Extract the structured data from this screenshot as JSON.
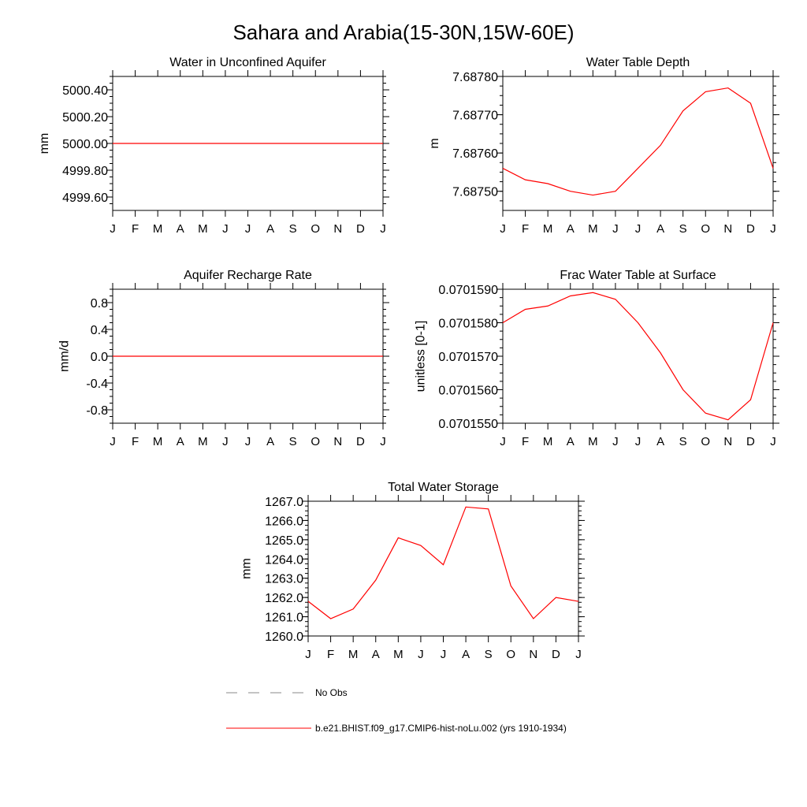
{
  "figure": {
    "title": "Sahara and Arabia(15-30N,15W-60E)"
  },
  "colors": {
    "series": "#ff0000",
    "obs": "#888888",
    "axis": "#000000"
  },
  "legend": {
    "items": [
      {
        "label": "No Obs",
        "style": "dashed",
        "color": "#888888"
      },
      {
        "label": "b.e21.BHIST.f09_g17.CMIP6-hist-noLu.002 (yrs 1910-1934)",
        "style": "solid",
        "color": "#ff0000"
      }
    ]
  },
  "chart_data": [
    {
      "type": "line",
      "title": "Water in Unconfined Aquifer",
      "ylabel": "mm",
      "categories": [
        "J",
        "F",
        "M",
        "A",
        "M",
        "J",
        "J",
        "A",
        "S",
        "O",
        "N",
        "D",
        "J"
      ],
      "ylim": [
        4999.5,
        5000.5
      ],
      "yticks": [
        "5000.40",
        "5000.20",
        "5000.00",
        "4999.80",
        "4999.60"
      ],
      "ytick_values": [
        5000.4,
        5000.2,
        5000.0,
        4999.8,
        4999.6
      ],
      "series": [
        {
          "values": [
            5000.0,
            5000.0,
            5000.0,
            5000.0,
            5000.0,
            5000.0,
            5000.0,
            5000.0,
            5000.0,
            5000.0,
            5000.0,
            5000.0,
            5000.0
          ]
        }
      ]
    },
    {
      "type": "line",
      "title": "Water Table Depth",
      "ylabel": "m",
      "categories": [
        "J",
        "F",
        "M",
        "A",
        "M",
        "J",
        "J",
        "A",
        "S",
        "O",
        "N",
        "D",
        "J"
      ],
      "ylim": [
        7.68745,
        7.6878
      ],
      "yticks": [
        "7.68780",
        "7.68770",
        "7.68760",
        "7.68750"
      ],
      "ytick_values": [
        7.6878,
        7.6877,
        7.6876,
        7.6875
      ],
      "series": [
        {
          "values": [
            7.68756,
            7.68753,
            7.68752,
            7.6875,
            7.68749,
            7.6875,
            7.68756,
            7.68762,
            7.68771,
            7.68776,
            7.68777,
            7.68773,
            7.68756
          ]
        }
      ]
    },
    {
      "type": "line",
      "title": "Aquifer Recharge Rate",
      "ylabel": "mm/d",
      "categories": [
        "J",
        "F",
        "M",
        "A",
        "M",
        "J",
        "J",
        "A",
        "S",
        "O",
        "N",
        "D",
        "J"
      ],
      "ylim": [
        -1.0,
        1.0
      ],
      "yticks": [
        "0.8",
        "0.4",
        "0.0",
        "-0.4",
        "-0.8"
      ],
      "ytick_values": [
        0.8,
        0.4,
        0.0,
        -0.4,
        -0.8
      ],
      "series": [
        {
          "values": [
            0,
            0,
            0,
            0,
            0,
            0,
            0,
            0,
            0,
            0,
            0,
            0,
            0
          ]
        }
      ]
    },
    {
      "type": "line",
      "title": "Frac Water Table at Surface",
      "ylabel": "unitless [0-1]",
      "categories": [
        "J",
        "F",
        "M",
        "A",
        "M",
        "J",
        "J",
        "A",
        "S",
        "O",
        "N",
        "D",
        "J"
      ],
      "ylim": [
        0.070155,
        0.070159
      ],
      "yticks": [
        "0.0701590",
        "0.0701580",
        "0.0701570",
        "0.0701560",
        "0.0701550"
      ],
      "ytick_values": [
        0.070159,
        0.070158,
        0.070157,
        0.070156,
        0.070155
      ],
      "series": [
        {
          "values": [
            0.070158,
            0.0701584,
            0.0701585,
            0.0701588,
            0.0701589,
            0.0701587,
            0.070158,
            0.0701571,
            0.070156,
            0.0701553,
            0.0701551,
            0.0701557,
            0.070158
          ]
        }
      ]
    },
    {
      "type": "line",
      "title": "Total Water Storage",
      "ylabel": "mm",
      "categories": [
        "J",
        "F",
        "M",
        "A",
        "M",
        "J",
        "J",
        "A",
        "S",
        "O",
        "N",
        "D",
        "J"
      ],
      "ylim": [
        1260.0,
        1267.0
      ],
      "yticks": [
        "1267.0",
        "1266.0",
        "1265.0",
        "1264.0",
        "1263.0",
        "1262.0",
        "1261.0",
        "1260.0"
      ],
      "ytick_values": [
        1267,
        1266,
        1265,
        1264,
        1263,
        1262,
        1261,
        1260
      ],
      "series": [
        {
          "values": [
            1261.8,
            1260.9,
            1261.4,
            1262.9,
            1265.1,
            1264.7,
            1263.7,
            1266.7,
            1266.6,
            1262.6,
            1260.9,
            1262.0,
            1261.8
          ]
        }
      ]
    }
  ]
}
